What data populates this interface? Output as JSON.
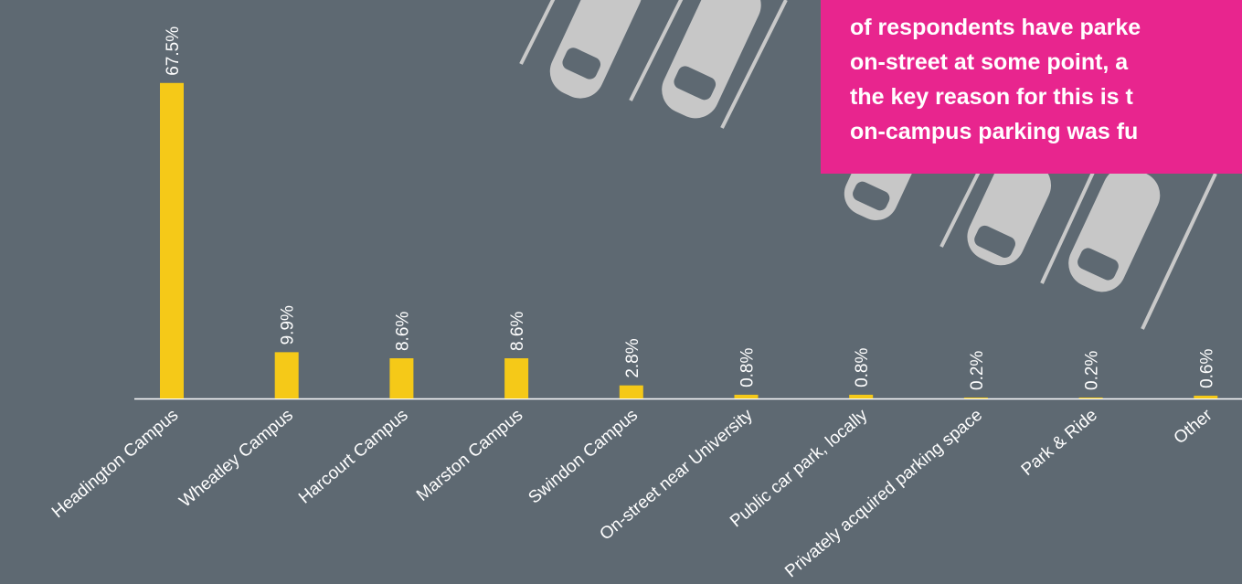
{
  "chart_data": {
    "type": "bar",
    "categories": [
      "Headington Campus",
      "Wheatley Campus",
      "Harcourt Campus",
      "Marston Campus",
      "Swindon Campus",
      "On-street near University",
      "Public car park, locally",
      "Privately acquired parking space",
      "Park & Ride",
      "Other"
    ],
    "values": [
      67.5,
      9.9,
      8.6,
      8.6,
      2.8,
      0.8,
      0.8,
      0.2,
      0.2,
      0.6
    ],
    "value_labels": [
      "67.5%",
      "9.9%",
      "8.6%",
      "8.6%",
      "2.8%",
      "0.8%",
      "0.8%",
      "0.2%",
      "0.2%",
      "0.6%"
    ],
    "color": "#f5c918",
    "ylim": [
      0,
      70
    ],
    "annotations": [
      "of respondents have parke",
      "on-street at some point, a",
      "the key reason for this is t",
      "on-campus parking was fu"
    ]
  }
}
